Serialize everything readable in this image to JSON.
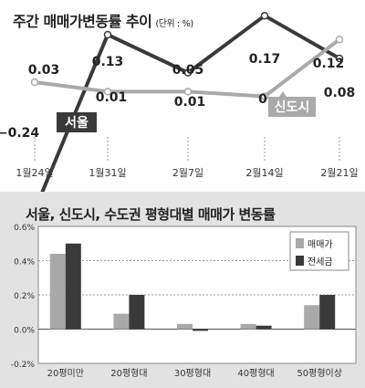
{
  "chart_data": [
    {
      "type": "line",
      "title": "주간 매매가변동률 추이",
      "unit": "(단위 : %)",
      "categories": [
        "1월24일",
        "1월31일",
        "2월7일",
        "2월14일",
        "2월21일"
      ],
      "series": [
        {
          "name": "서울",
          "values": [
            -0.24,
            0.13,
            0.05,
            0.17,
            0.08
          ],
          "labels": [
            "−0.24",
            "0.13",
            "0.05",
            "0.17",
            "0.08"
          ],
          "color": "#3a3a3a"
        },
        {
          "name": "신도시",
          "values": [
            0.03,
            0.01,
            0.01,
            0,
            0.12
          ],
          "labels": [
            "0.03",
            "0.01",
            "0.01",
            "0",
            "0.12"
          ],
          "color": "#a9a9a9"
        }
      ],
      "ylim": [
        -0.3,
        0.25
      ],
      "grid": false
    },
    {
      "type": "bar",
      "title": "서울, 신도시, 수도권 평형대별 매매가 변동률",
      "categories": [
        "20평미만",
        "20평형대",
        "30평형대",
        "40평형대",
        "50평형이상"
      ],
      "series": [
        {
          "name": "매매가",
          "values": [
            0.44,
            0.09,
            0.03,
            0.03,
            0.14
          ],
          "color": "#a9a9a9"
        },
        {
          "name": "전세금",
          "values": [
            0.5,
            0.2,
            -0.01,
            0.02,
            0.2
          ],
          "color": "#3a3a3a"
        }
      ],
      "yticks": [
        "0.6%",
        "0.4%",
        "0.2%",
        "0.0%",
        "-0.2%"
      ],
      "ylim": [
        -0.2,
        0.6
      ],
      "legend": "top-right",
      "grid": true
    }
  ]
}
